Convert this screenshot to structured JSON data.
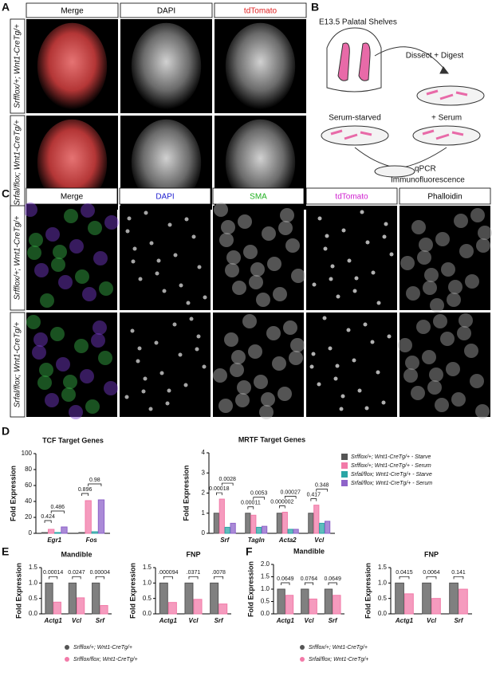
{
  "figure": {
    "panel_labels": [
      "A",
      "B",
      "C",
      "D",
      "E",
      "F"
    ],
    "panel_a": {
      "columns": [
        "Merge",
        "DAPI",
        "tdTomato"
      ],
      "rows": [
        "Srfflox/+; Wnt1-CreTg/+",
        "Srfal/flox; Wnt1-CreTg/+"
      ]
    },
    "panel_b": {
      "title": "E13.5 Palatal Shelves",
      "step": "Dissect + Digest",
      "conditions": [
        "Serum-starved",
        "+ Serum"
      ],
      "readouts": [
        "qPCR",
        "Immunofluorescence"
      ]
    },
    "panel_c": {
      "columns": [
        "Merge",
        "DAPI",
        "SMA",
        "tdTomato",
        "Phalloidin"
      ],
      "rows": [
        "Srfflox/+; Wnt1-CreTg/+",
        "Srfal/flox; Wnt1-CreTg/+"
      ]
    }
  },
  "chart_data": [
    {
      "type": "bar",
      "title": "TCF Target Genes",
      "ylabel": "Fold Expression",
      "categories": [
        "Egr1",
        "Fos"
      ],
      "series": [
        {
          "color": "#555555",
          "values": [
            1,
            1
          ]
        },
        {
          "color": "#f27aa8",
          "values": [
            5,
            41
          ]
        },
        {
          "color": "#2aa5a5",
          "values": [
            1,
            2
          ]
        },
        {
          "color": "#8e63c9",
          "values": [
            8,
            42
          ]
        }
      ],
      "ylim": [
        0,
        100
      ],
      "yticks": [
        0,
        20,
        40,
        60,
        80,
        100
      ],
      "annotations": [
        "0.424",
        "0.486",
        "0.896",
        "0.98"
      ]
    },
    {
      "type": "bar",
      "title": "MRTF Target Genes",
      "ylabel": "Fold Expression",
      "categories": [
        "Srf",
        "Tagln",
        "Acta2",
        "Vcl"
      ],
      "series": [
        {
          "name": "Srfflox/+; Wnt1-CreTg/+ - Starve",
          "color": "#555555",
          "values": [
            1,
            1,
            1,
            1
          ]
        },
        {
          "name": "Srfflox/+; Wnt1-CreTg/+ - Serum",
          "color": "#f27aa8",
          "values": [
            1.7,
            0.9,
            1.05,
            1.4
          ]
        },
        {
          "name": "Srfal/flox; Wnt1-CreTg/+ - Starve",
          "color": "#2aa5a5",
          "values": [
            0.3,
            0.3,
            0.2,
            0.5
          ]
        },
        {
          "name": "Srfal/flox; Wnt1-CreTg/+ - Serum",
          "color": "#8e63c9",
          "values": [
            0.5,
            0.35,
            0.2,
            0.6
          ]
        }
      ],
      "ylim": [
        0,
        4
      ],
      "yticks": [
        0,
        1,
        2,
        3,
        4
      ],
      "annotations": [
        "0.00018",
        "0.0028",
        "0.00011",
        "0.0053",
        "0.000002",
        "0.00027",
        "0.417",
        "0.348"
      ]
    },
    {
      "type": "bar",
      "title": "Mandible",
      "ylabel": "Fold Expression",
      "categories": [
        "Actg1",
        "Vcl",
        "Srf"
      ],
      "series": [
        {
          "name": "Srfflox/+; Wnt1-CreTg/+",
          "color": "#555555",
          "values": [
            1,
            1,
            1
          ]
        },
        {
          "name": "Srfflox/flox; Wnt1-CreTg/+",
          "color": "#f27aa8",
          "values": [
            0.38,
            0.52,
            0.27
          ]
        }
      ],
      "ylim": [
        0,
        1.5
      ],
      "yticks": [
        {
          "value": 0,
          "label": "0.0"
        },
        {
          "value": 0.5,
          "label": "0.5"
        },
        {
          "value": 1,
          "label": "1.0"
        },
        {
          "value": 1.5,
          "label": "1.5"
        }
      ],
      "annotations": [
        "0.00014",
        "0.0247",
        "0.00004"
      ]
    },
    {
      "type": "bar",
      "title": "FNP",
      "ylabel": "Fold Expression",
      "categories": [
        "Actg1",
        "Vcl",
        "Srf"
      ],
      "series": [
        {
          "color": "#555555",
          "values": [
            1,
            1,
            1
          ]
        },
        {
          "color": "#f27aa8",
          "values": [
            0.37,
            0.47,
            0.32
          ]
        }
      ],
      "ylim": [
        0,
        1.5
      ],
      "yticks": [
        {
          "value": 0,
          "label": "0.0"
        },
        {
          "value": 0.5,
          "label": "0.5"
        },
        {
          "value": 1,
          "label": "1.0"
        },
        {
          "value": 1.5,
          "label": "1.5"
        }
      ],
      "annotations": [
        ".000094",
        ".0371",
        ".0078"
      ]
    },
    {
      "type": "bar",
      "title": "Mandible",
      "ylabel": "Fold Expression",
      "categories": [
        "Actg1",
        "Vcl",
        "Srf"
      ],
      "series": [
        {
          "name": "Srfflox/+; Wnt1-CreTg/+",
          "color": "#555555",
          "values": [
            1,
            1,
            1
          ]
        },
        {
          "name": "Srfal/flox; Wnt1-CreTg/+",
          "color": "#f27aa8",
          "values": [
            0.75,
            0.6,
            0.75
          ]
        }
      ],
      "ylim": [
        0,
        2
      ],
      "yticks": [
        {
          "value": 0,
          "label": "0.0"
        },
        {
          "value": 0.5,
          "label": "0.5"
        },
        {
          "value": 1,
          "label": "1.0"
        },
        {
          "value": 1.5,
          "label": "1.5"
        },
        {
          "value": 2,
          "label": "2.0"
        }
      ],
      "annotations": [
        "0.0649",
        "0.0764",
        "0.0649"
      ]
    },
    {
      "type": "bar",
      "title": "FNP",
      "ylabel": "Fold Expression",
      "categories": [
        "Actg1",
        "Vcl",
        "Srf"
      ],
      "series": [
        {
          "color": "#555555",
          "values": [
            1,
            1,
            1
          ]
        },
        {
          "color": "#f27aa8",
          "values": [
            0.65,
            0.5,
            0.8
          ]
        }
      ],
      "ylim": [
        0,
        1.5
      ],
      "yticks": [
        {
          "value": 0,
          "label": "0.0"
        },
        {
          "value": 0.5,
          "label": "0.5"
        },
        {
          "value": 1,
          "label": "1.0"
        },
        {
          "value": 1.5,
          "label": "1.5"
        }
      ],
      "annotations": [
        "0.0415",
        "0.0064",
        "0.141"
      ]
    }
  ]
}
